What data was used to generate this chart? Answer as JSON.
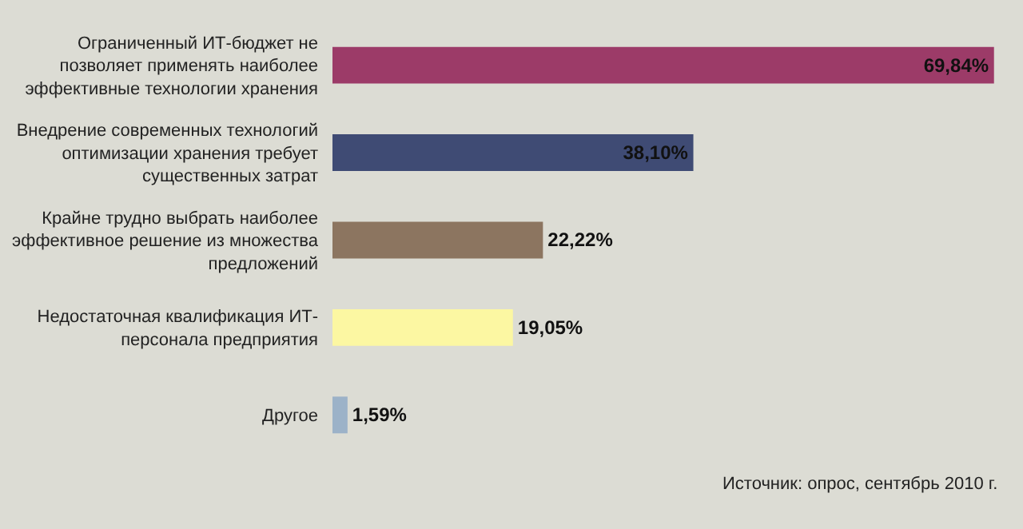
{
  "chart_data": {
    "type": "bar",
    "orientation": "horizontal",
    "categories": [
      "Ограниченный ИТ-бюджет не позволяет применять наиболее эффективные технологии хранения",
      "Внедрение современных технологий оптимизации хранения требует существенных затрат",
      "Крайне трудно выбрать наиболее эффективное решение из множества предложений",
      "Недостаточная квалификация ИТ-персонала предприятия",
      "Другое"
    ],
    "values": [
      69.84,
      38.1,
      22.22,
      19.05,
      1.59
    ],
    "colors": [
      "#9c3b68",
      "#3f4b74",
      "#8c7560",
      "#fcf7a2",
      "#9cb2c8"
    ],
    "value_labels": [
      "69,84%",
      "38,10%",
      "22,22%",
      "19,05%",
      "1,59%"
    ],
    "annotations": [
      "Источник: опрос, сентябрь 2010 г."
    ],
    "grid": false
  }
}
